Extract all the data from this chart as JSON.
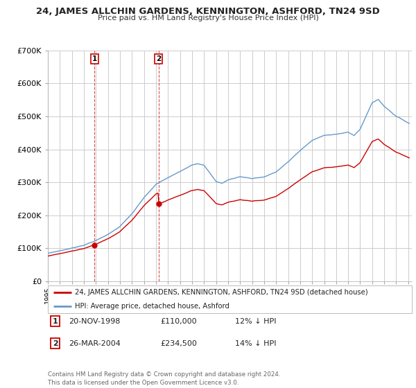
{
  "title": "24, JAMES ALLCHIN GARDENS, KENNINGTON, ASHFORD, TN24 9SD",
  "subtitle": "Price paid vs. HM Land Registry's House Price Index (HPI)",
  "legend_label_red": "24, JAMES ALLCHIN GARDENS, KENNINGTON, ASHFORD, TN24 9SD (detached house)",
  "legend_label_blue": "HPI: Average price, detached house, Ashford",
  "annotation1_label": "1",
  "annotation1_date": "20-NOV-1998",
  "annotation1_price": "£110,000",
  "annotation1_hpi": "12% ↓ HPI",
  "annotation2_label": "2",
  "annotation2_date": "26-MAR-2004",
  "annotation2_price": "£234,500",
  "annotation2_hpi": "14% ↓ HPI",
  "footer": "Contains HM Land Registry data © Crown copyright and database right 2024.\nThis data is licensed under the Open Government Licence v3.0.",
  "red_color": "#cc0000",
  "blue_color": "#6699cc",
  "background_color": "#ffffff",
  "grid_color": "#cccccc",
  "ylim": [
    0,
    700000
  ],
  "yticks": [
    0,
    100000,
    200000,
    300000,
    400000,
    500000,
    600000,
    700000
  ],
  "ytick_labels": [
    "£0",
    "£100K",
    "£200K",
    "£300K",
    "£400K",
    "£500K",
    "£600K",
    "£700K"
  ],
  "sale1_x": 1998.89,
  "sale1_y": 110000,
  "sale2_x": 2004.23,
  "sale2_y": 234500,
  "xlim_left": 1995.0,
  "xlim_right": 2025.3
}
